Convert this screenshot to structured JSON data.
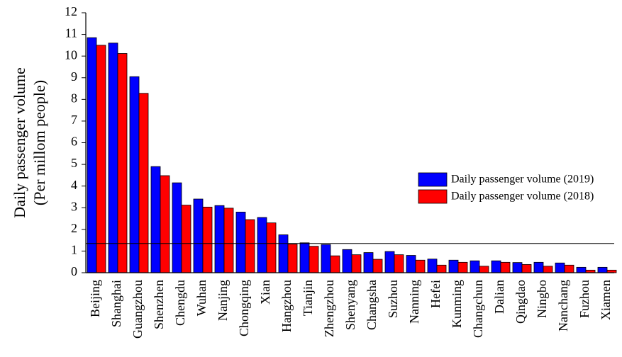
{
  "chart_data": {
    "type": "bar",
    "y_label_lines": [
      "Daily passenger volume",
      "(Per millom people)"
    ],
    "categories": [
      "Beijing",
      "Shanghai",
      "Guangzhou",
      "Shenzhen",
      "Chengdu",
      "Wuhan",
      "Nanjing",
      "Chongqing",
      "Xian",
      "Hangzhou",
      "Tianjin",
      "Zhengzhou",
      "Shenyang",
      "Changsha",
      "Suzhou",
      "Nanning",
      "Hefei",
      "Kunming",
      "Changchun",
      "Dalian",
      "Qingdao",
      "Ningbo",
      "Nanchang",
      "Fuzhou",
      "Xiamen"
    ],
    "series": [
      {
        "name": "Daily passenger volume (2019)",
        "color": "#0000ff",
        "values": [
          10.85,
          10.6,
          9.05,
          4.9,
          4.15,
          3.4,
          3.1,
          2.8,
          2.55,
          1.75,
          1.38,
          1.3,
          1.07,
          0.93,
          0.98,
          0.8,
          0.63,
          0.58,
          0.55,
          0.55,
          0.47,
          0.48,
          0.45,
          0.25,
          0.25
        ]
      },
      {
        "name": "Daily passenger volume (2018)",
        "color": "#ff0000",
        "values": [
          10.5,
          10.12,
          8.28,
          4.48,
          3.12,
          3.03,
          2.98,
          2.45,
          2.3,
          1.32,
          1.22,
          0.78,
          0.83,
          0.62,
          0.83,
          0.58,
          0.35,
          0.48,
          0.3,
          0.48,
          0.38,
          0.3,
          0.35,
          0.12,
          0.12
        ]
      }
    ],
    "reference_line": 1.35,
    "ylim": [
      0,
      12
    ],
    "yticks": [
      0,
      1,
      2,
      3,
      4,
      5,
      6,
      7,
      8,
      9,
      10,
      11,
      12
    ]
  }
}
